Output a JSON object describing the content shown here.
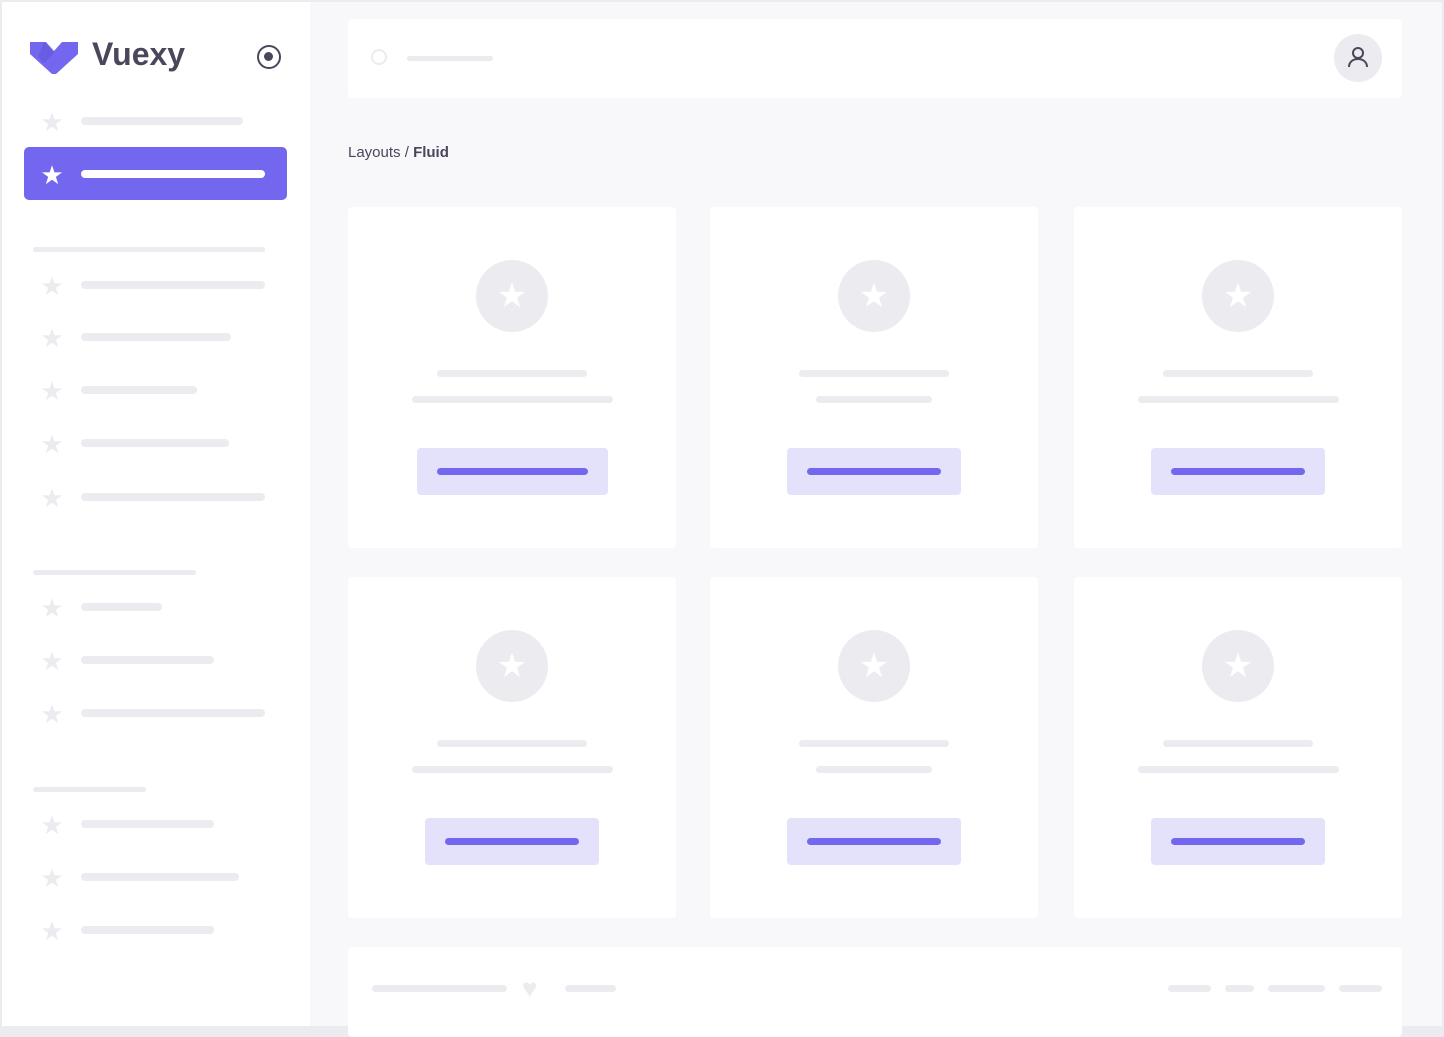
{
  "brand": {
    "name": "Vuexy",
    "logo_color": "#7367f0",
    "text_color": "#4b465c"
  },
  "sidebar": {
    "toggle_icon": "radio-circle-icon",
    "item_icon": "star-icon",
    "active_index": 1,
    "active_color": "#7367f0"
  },
  "header": {
    "search_icon": "search-icon",
    "avatar_icon": "user-icon"
  },
  "breadcrumb": {
    "parent": "Layouts",
    "separator": " / ",
    "current": "Fluid"
  },
  "cards": {
    "icon": "star-icon",
    "accent": "#7367f0",
    "button_bg": "#e4e1fb",
    "count": 6
  },
  "footer": {
    "icon": "heart-icon"
  },
  "colors": {
    "skeleton": "#ebebf0",
    "page_bg": "#f8f8fa",
    "surface": "#ffffff"
  }
}
